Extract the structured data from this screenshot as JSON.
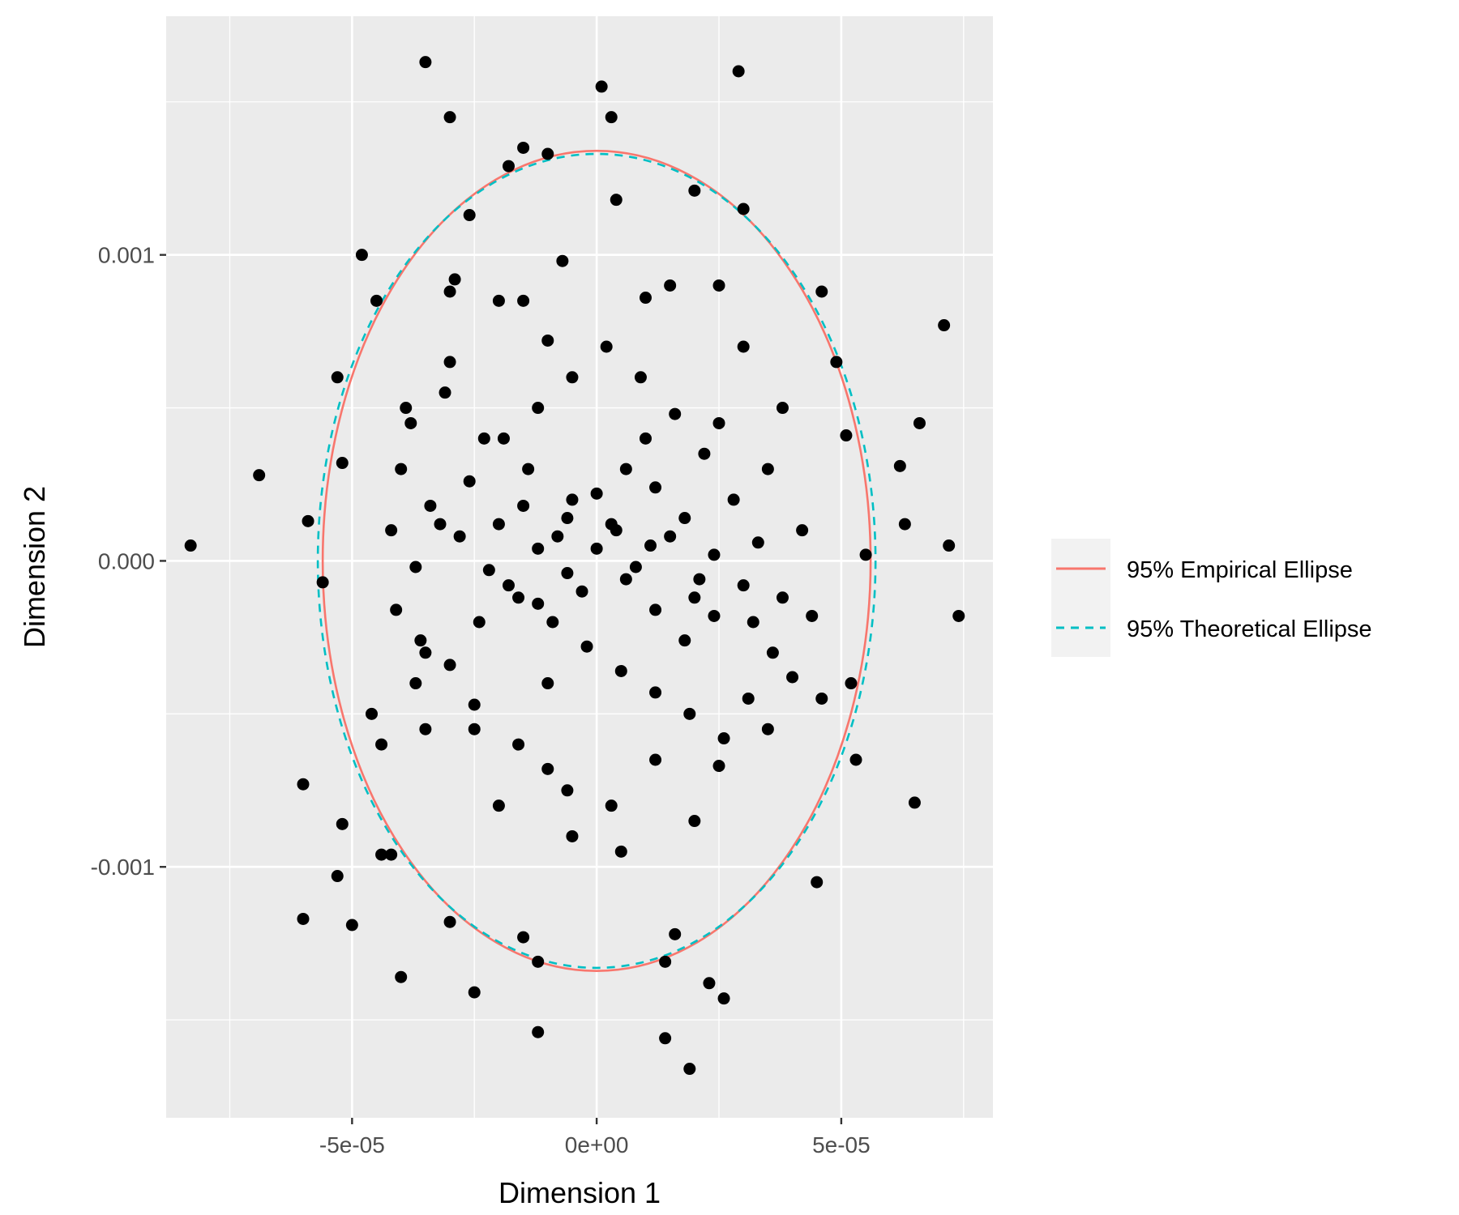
{
  "chart_data": {
    "type": "scatter",
    "xlabel": "Dimension 1",
    "ylabel": "Dimension 2",
    "xlim": [
      -8.8e-05,
      8.1e-05
    ],
    "ylim": [
      -0.00182,
      0.00178
    ],
    "x_ticks": [
      {
        "value": -5e-05,
        "label": "-5e-05"
      },
      {
        "value": 0,
        "label": "0e+00"
      },
      {
        "value": 5e-05,
        "label": "5e-05"
      }
    ],
    "y_ticks": [
      {
        "value": 0.001,
        "label": "0.001"
      },
      {
        "value": 0,
        "label": "0.000"
      },
      {
        "value": -0.001,
        "label": "-0.001"
      }
    ],
    "grid": true,
    "background_color": "#EBEBEB",
    "grid_color": "#FFFFFF",
    "point_color": "#000000",
    "legend_position": "right",
    "legend": [
      {
        "label": "95% Empirical Ellipse",
        "color": "#F8766D",
        "linetype": "solid"
      },
      {
        "label": "95% Theoretical Ellipse",
        "color": "#00BFC4",
        "linetype": "dashed"
      }
    ],
    "series": [
      {
        "name": "95% Empirical Ellipse",
        "kind": "ellipse",
        "center": [
          0,
          0.0
        ],
        "radius_x": 5.6e-05,
        "radius_y": 0.00134,
        "color": "#F8766D",
        "linetype": "solid"
      },
      {
        "name": "95% Theoretical Ellipse",
        "kind": "ellipse",
        "center": [
          0,
          0.0
        ],
        "radius_x": 5.7e-05,
        "radius_y": 0.00133,
        "color": "#00BFC4",
        "linetype": "dashed"
      }
    ],
    "points": [
      [
        -3.5e-05,
        0.00163
      ],
      [
        2.9e-05,
        0.0016
      ],
      [
        1e-06,
        0.00155
      ],
      [
        -3e-05,
        0.00145
      ],
      [
        3e-06,
        0.00145
      ],
      [
        -1.5e-05,
        0.00135
      ],
      [
        -8.3e-05,
        5e-05
      ],
      [
        -6.9e-05,
        0.00028
      ],
      [
        -4.8e-05,
        0.001
      ],
      [
        7.1e-05,
        0.00077
      ],
      [
        7.4e-05,
        -0.00018
      ],
      [
        7.2e-05,
        5e-05
      ],
      [
        6.6e-05,
        0.00045
      ],
      [
        -6e-05,
        -0.00073
      ],
      [
        -6e-05,
        -0.00117
      ],
      [
        -4e-05,
        -0.00136
      ],
      [
        -2.5e-05,
        -0.00141
      ],
      [
        -1.2e-05,
        -0.00154
      ],
      [
        1.4e-05,
        -0.00156
      ],
      [
        1.9e-05,
        -0.00166
      ],
      [
        2.6e-05,
        -0.00143
      ],
      [
        2.3e-05,
        -0.00138
      ],
      [
        6.5e-05,
        -0.00079
      ],
      [
        6.2e-05,
        0.00031
      ],
      [
        6.3e-05,
        0.00012
      ],
      [
        4.5e-05,
        -0.00105
      ],
      [
        5.2e-05,
        -0.0004
      ],
      [
        5.3e-05,
        -0.00065
      ],
      [
        -5e-05,
        -0.00119
      ],
      [
        -5.3e-05,
        -0.00103
      ],
      [
        -5.2e-05,
        -0.00086
      ],
      [
        -5.6e-05,
        -7e-05
      ],
      [
        -5.9e-05,
        0.00013
      ],
      [
        -5.3e-05,
        0.0006
      ],
      [
        -5.2e-05,
        0.00032
      ],
      [
        -4.5e-05,
        0.00085
      ],
      [
        4.6e-05,
        0.00088
      ],
      [
        4.9e-05,
        0.00065
      ],
      [
        5.1e-05,
        0.00041
      ],
      [
        5.5e-05,
        2e-05
      ],
      [
        -4.4e-05,
        -0.00096
      ],
      [
        -4.2e-05,
        -0.00096
      ],
      [
        -3e-05,
        -0.00118
      ],
      [
        -1.2e-05,
        -0.00131
      ],
      [
        -1.5e-05,
        -0.00123
      ],
      [
        1.4e-05,
        -0.00131
      ],
      [
        1.6e-05,
        -0.00122
      ],
      [
        -2.9e-05,
        0.00092
      ],
      [
        -3e-05,
        0.00088
      ],
      [
        -2.6e-05,
        0.00113
      ],
      [
        -1.8e-05,
        0.00129
      ],
      [
        -1e-05,
        0.00133
      ],
      [
        2e-05,
        0.00121
      ],
      [
        3e-05,
        0.00115
      ],
      [
        -7e-06,
        0.00098
      ],
      [
        4e-06,
        0.00118
      ],
      [
        -2e-05,
        0.00085
      ],
      [
        1e-05,
        0.00086
      ],
      [
        -1e-05,
        0.00072
      ],
      [
        2.5e-05,
        0.0009
      ],
      [
        -3.7e-05,
        -0.0004
      ],
      [
        -3.5e-05,
        -0.00055
      ],
      [
        -2.5e-05,
        -0.00047
      ],
      [
        -1.6e-05,
        -0.0006
      ],
      [
        -1e-05,
        -0.00068
      ],
      [
        -6e-06,
        -0.00075
      ],
      [
        3e-06,
        -0.0008
      ],
      [
        1.2e-05,
        -0.00065
      ],
      [
        2.5e-05,
        -0.00067
      ],
      [
        3.5e-05,
        -0.00055
      ],
      [
        4e-05,
        -0.00038
      ],
      [
        3.2e-05,
        -0.0002
      ],
      [
        2.1e-05,
        -6e-05
      ],
      [
        1.1e-05,
        5e-05
      ],
      [
        3e-06,
        0.00012
      ],
      [
        -5e-06,
        0.0002
      ],
      [
        -1.4e-05,
        0.0003
      ],
      [
        -2.3e-05,
        0.0004
      ],
      [
        -3.1e-05,
        0.00055
      ],
      [
        -3.9e-05,
        0.0005
      ],
      [
        -4e-05,
        0.0003
      ],
      [
        -3.4e-05,
        0.00018
      ],
      [
        -2.8e-05,
        8e-05
      ],
      [
        -2.2e-05,
        -3e-05
      ],
      [
        -1.6e-05,
        -0.00012
      ],
      [
        -9e-06,
        -0.0002
      ],
      [
        -2e-06,
        -0.00028
      ],
      [
        5e-06,
        -0.00036
      ],
      [
        1.2e-05,
        -0.00043
      ],
      [
        1.9e-05,
        -0.0005
      ],
      [
        2.6e-05,
        -0.00058
      ],
      [
        3.1e-05,
        -0.00045
      ],
      [
        3.6e-05,
        -0.0003
      ],
      [
        3.8e-05,
        -0.00012
      ],
      [
        3.3e-05,
        6e-05
      ],
      [
        2.8e-05,
        0.0002
      ],
      [
        2.2e-05,
        0.00035
      ],
      [
        1.6e-05,
        0.00048
      ],
      [
        9e-06,
        0.0006
      ],
      [
        2e-06,
        0.0007
      ],
      [
        -5e-06,
        0.0006
      ],
      [
        -1.2e-05,
        0.0005
      ],
      [
        -1.9e-05,
        0.0004
      ],
      [
        -2.6e-05,
        0.00026
      ],
      [
        -3.2e-05,
        0.00012
      ],
      [
        -3.7e-05,
        -2e-05
      ],
      [
        -4.1e-05,
        -0.00016
      ],
      [
        -3.6e-05,
        -0.00026
      ],
      [
        -3e-05,
        -0.00034
      ],
      [
        -2.4e-05,
        -0.0002
      ],
      [
        -1.8e-05,
        -8e-05
      ],
      [
        -1.2e-05,
        4e-05
      ],
      [
        -6e-06,
        0.00014
      ],
      [
        0,
        0.00022
      ],
      [
        6e-06,
        0.0003
      ],
      [
        1.2e-05,
        0.00024
      ],
      [
        1.8e-05,
        0.00014
      ],
      [
        2.4e-05,
        2e-05
      ],
      [
        3e-05,
        -8e-05
      ],
      [
        2.4e-05,
        -0.00018
      ],
      [
        1.8e-05,
        -0.00026
      ],
      [
        1.2e-05,
        -0.00016
      ],
      [
        6e-06,
        -6e-05
      ],
      [
        0,
        4e-05
      ],
      [
        -6e-06,
        -4e-05
      ],
      [
        -1.2e-05,
        -0.00014
      ],
      [
        -8e-06,
        8e-05
      ],
      [
        4e-06,
        0.0001
      ],
      [
        8e-06,
        -2e-05
      ],
      [
        -3e-06,
        -0.0001
      ],
      [
        1.5e-05,
        8e-05
      ],
      [
        -1.5e-05,
        0.00018
      ],
      [
        2e-05,
        -0.00012
      ],
      [
        -2e-05,
        0.00012
      ],
      [
        1e-05,
        0.0004
      ],
      [
        -1e-05,
        -0.0004
      ],
      [
        2.5e-05,
        0.00045
      ],
      [
        -2.5e-05,
        -0.00055
      ],
      [
        3.5e-05,
        0.0003
      ],
      [
        -3.5e-05,
        -0.0003
      ],
      [
        4.2e-05,
        0.0001
      ],
      [
        -4.2e-05,
        0.0001
      ],
      [
        4.4e-05,
        -0.00018
      ],
      [
        -4.4e-05,
        -0.0006
      ],
      [
        1.5e-05,
        0.0009
      ],
      [
        -1.5e-05,
        0.00085
      ],
      [
        5e-06,
        -0.00095
      ],
      [
        -5e-06,
        -0.0009
      ],
      [
        2e-05,
        -0.00085
      ],
      [
        -2e-05,
        -0.0008
      ],
      [
        3e-05,
        0.0007
      ],
      [
        -3e-05,
        0.00065
      ],
      [
        3.8e-05,
        0.0005
      ],
      [
        -3.8e-05,
        0.00045
      ],
      [
        4.6e-05,
        -0.00045
      ],
      [
        -4.6e-05,
        -0.0005
      ]
    ]
  }
}
